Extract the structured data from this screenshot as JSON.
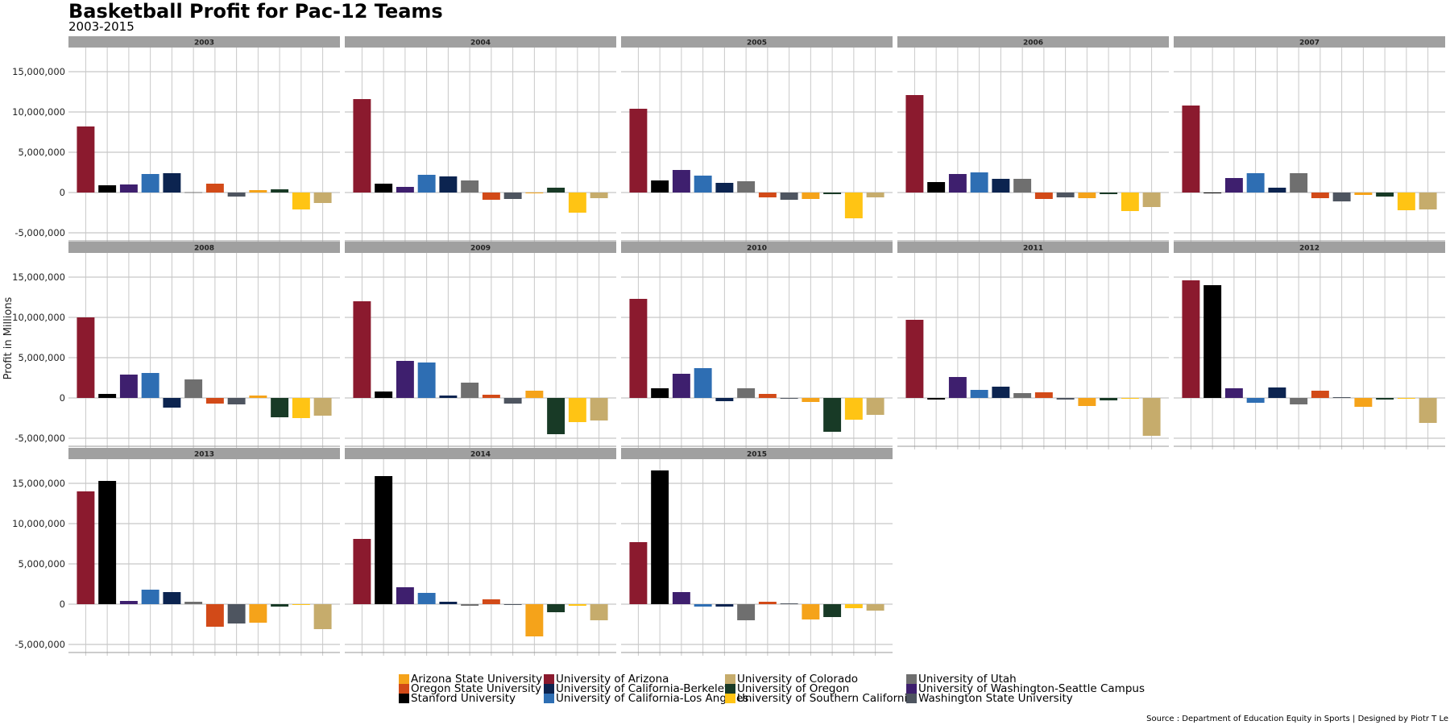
{
  "title": "Basketball Profit for Pac-12 Teams",
  "subtitle": "2003-2015",
  "source": "Source : Department of Education Equity in Sports | Designed by Piotr T Le",
  "chart_data": {
    "type": "bar",
    "layout": "facet_wrap",
    "ylabel": "Profit in Millions",
    "xlabel": "",
    "ylim": [
      -6000000,
      18000000
    ],
    "yticks": [
      -5000000,
      0,
      5000000,
      10000000,
      15000000
    ],
    "ytick_labels": [
      "-5,000,000",
      "0",
      "5,000,000",
      "10,000,000",
      "15,000,000"
    ],
    "grid": true,
    "legend_position": "bottom",
    "teams": [
      {
        "name": "University of Arizona",
        "color": "#8B1A2E"
      },
      {
        "name": "Stanford University",
        "color": "#000000"
      },
      {
        "name": "University of Washington-Seattle Campus",
        "color": "#3E1F6E"
      },
      {
        "name": "University of California-Los Angeles",
        "color": "#2E6EB3"
      },
      {
        "name": "University of California-Berkeley",
        "color": "#0C2450"
      },
      {
        "name": "University of Utah",
        "color": "#6F6F6F"
      },
      {
        "name": "Oregon State University",
        "color": "#D24A18"
      },
      {
        "name": "Washington State University",
        "color": "#4E5560"
      },
      {
        "name": "Arizona State University",
        "color": "#F5A31A"
      },
      {
        "name": "University of Oregon",
        "color": "#183A26"
      },
      {
        "name": "University of Southern California",
        "color": "#FFC414"
      },
      {
        "name": "University of Colorado",
        "color": "#C6AC6C"
      }
    ],
    "legend_order": [
      "Arizona State University",
      "University of Arizona",
      "University of Colorado",
      "University of Utah",
      "Oregon State University",
      "University of California-Berkeley",
      "University of Oregon",
      "University of Washington-Seattle Campus",
      "Stanford University",
      "University of California-Los Angeles",
      "University of Southern California",
      "Washington State University"
    ],
    "facets": [
      {
        "year": "2003",
        "values": [
          8200000,
          900000,
          1000000,
          2300000,
          2400000,
          50000,
          1100000,
          -500000,
          300000,
          400000,
          -2100000,
          -1300000
        ]
      },
      {
        "year": "2004",
        "values": [
          11600000,
          1100000,
          700000,
          2200000,
          2000000,
          1500000,
          -900000,
          -800000,
          -100000,
          600000,
          -2500000,
          -700000
        ]
      },
      {
        "year": "2005",
        "values": [
          10400000,
          1500000,
          2800000,
          2100000,
          1200000,
          1400000,
          -600000,
          -900000,
          -800000,
          -200000,
          -3200000,
          -600000
        ]
      },
      {
        "year": "2006",
        "values": [
          12100000,
          1300000,
          2300000,
          2500000,
          1700000,
          1700000,
          -800000,
          -600000,
          -700000,
          -200000,
          -2300000,
          -1800000
        ]
      },
      {
        "year": "2007",
        "values": [
          10800000,
          -100000,
          1800000,
          2400000,
          600000,
          2400000,
          -700000,
          -1100000,
          -300000,
          -500000,
          -2200000,
          -2100000
        ]
      },
      {
        "year": "2008",
        "values": [
          10000000,
          500000,
          2900000,
          3100000,
          -1200000,
          2300000,
          -700000,
          -800000,
          300000,
          -2400000,
          -2500000,
          -2200000
        ]
      },
      {
        "year": "2009",
        "values": [
          12000000,
          800000,
          4600000,
          4400000,
          300000,
          1900000,
          400000,
          -700000,
          900000,
          -4500000,
          -3000000,
          -2800000
        ]
      },
      {
        "year": "2010",
        "values": [
          12300000,
          1200000,
          3000000,
          3700000,
          -400000,
          1200000,
          500000,
          -100000,
          -500000,
          -4200000,
          -2700000,
          -2100000
        ]
      },
      {
        "year": "2011",
        "values": [
          9700000,
          -200000,
          2600000,
          1000000,
          1400000,
          600000,
          700000,
          -200000,
          -1000000,
          -300000,
          -100000,
          -4700000
        ]
      },
      {
        "year": "2012",
        "values": [
          14600000,
          14000000,
          1200000,
          -600000,
          1300000,
          -800000,
          900000,
          100000,
          -1100000,
          -200000,
          -100000,
          -3100000
        ]
      },
      {
        "year": "2013",
        "values": [
          14000000,
          15300000,
          400000,
          1800000,
          1500000,
          300000,
          -2800000,
          -2400000,
          -2300000,
          -300000,
          -100000,
          -3100000
        ]
      },
      {
        "year": "2014",
        "values": [
          8100000,
          15900000,
          2100000,
          1400000,
          300000,
          -200000,
          600000,
          -50000,
          -4000000,
          -1000000,
          -200000,
          -2000000
        ]
      },
      {
        "year": "2015",
        "values": [
          7700000,
          16600000,
          1500000,
          -300000,
          -300000,
          -2000000,
          300000,
          100000,
          -1900000,
          -1600000,
          -500000,
          -800000
        ]
      }
    ]
  }
}
